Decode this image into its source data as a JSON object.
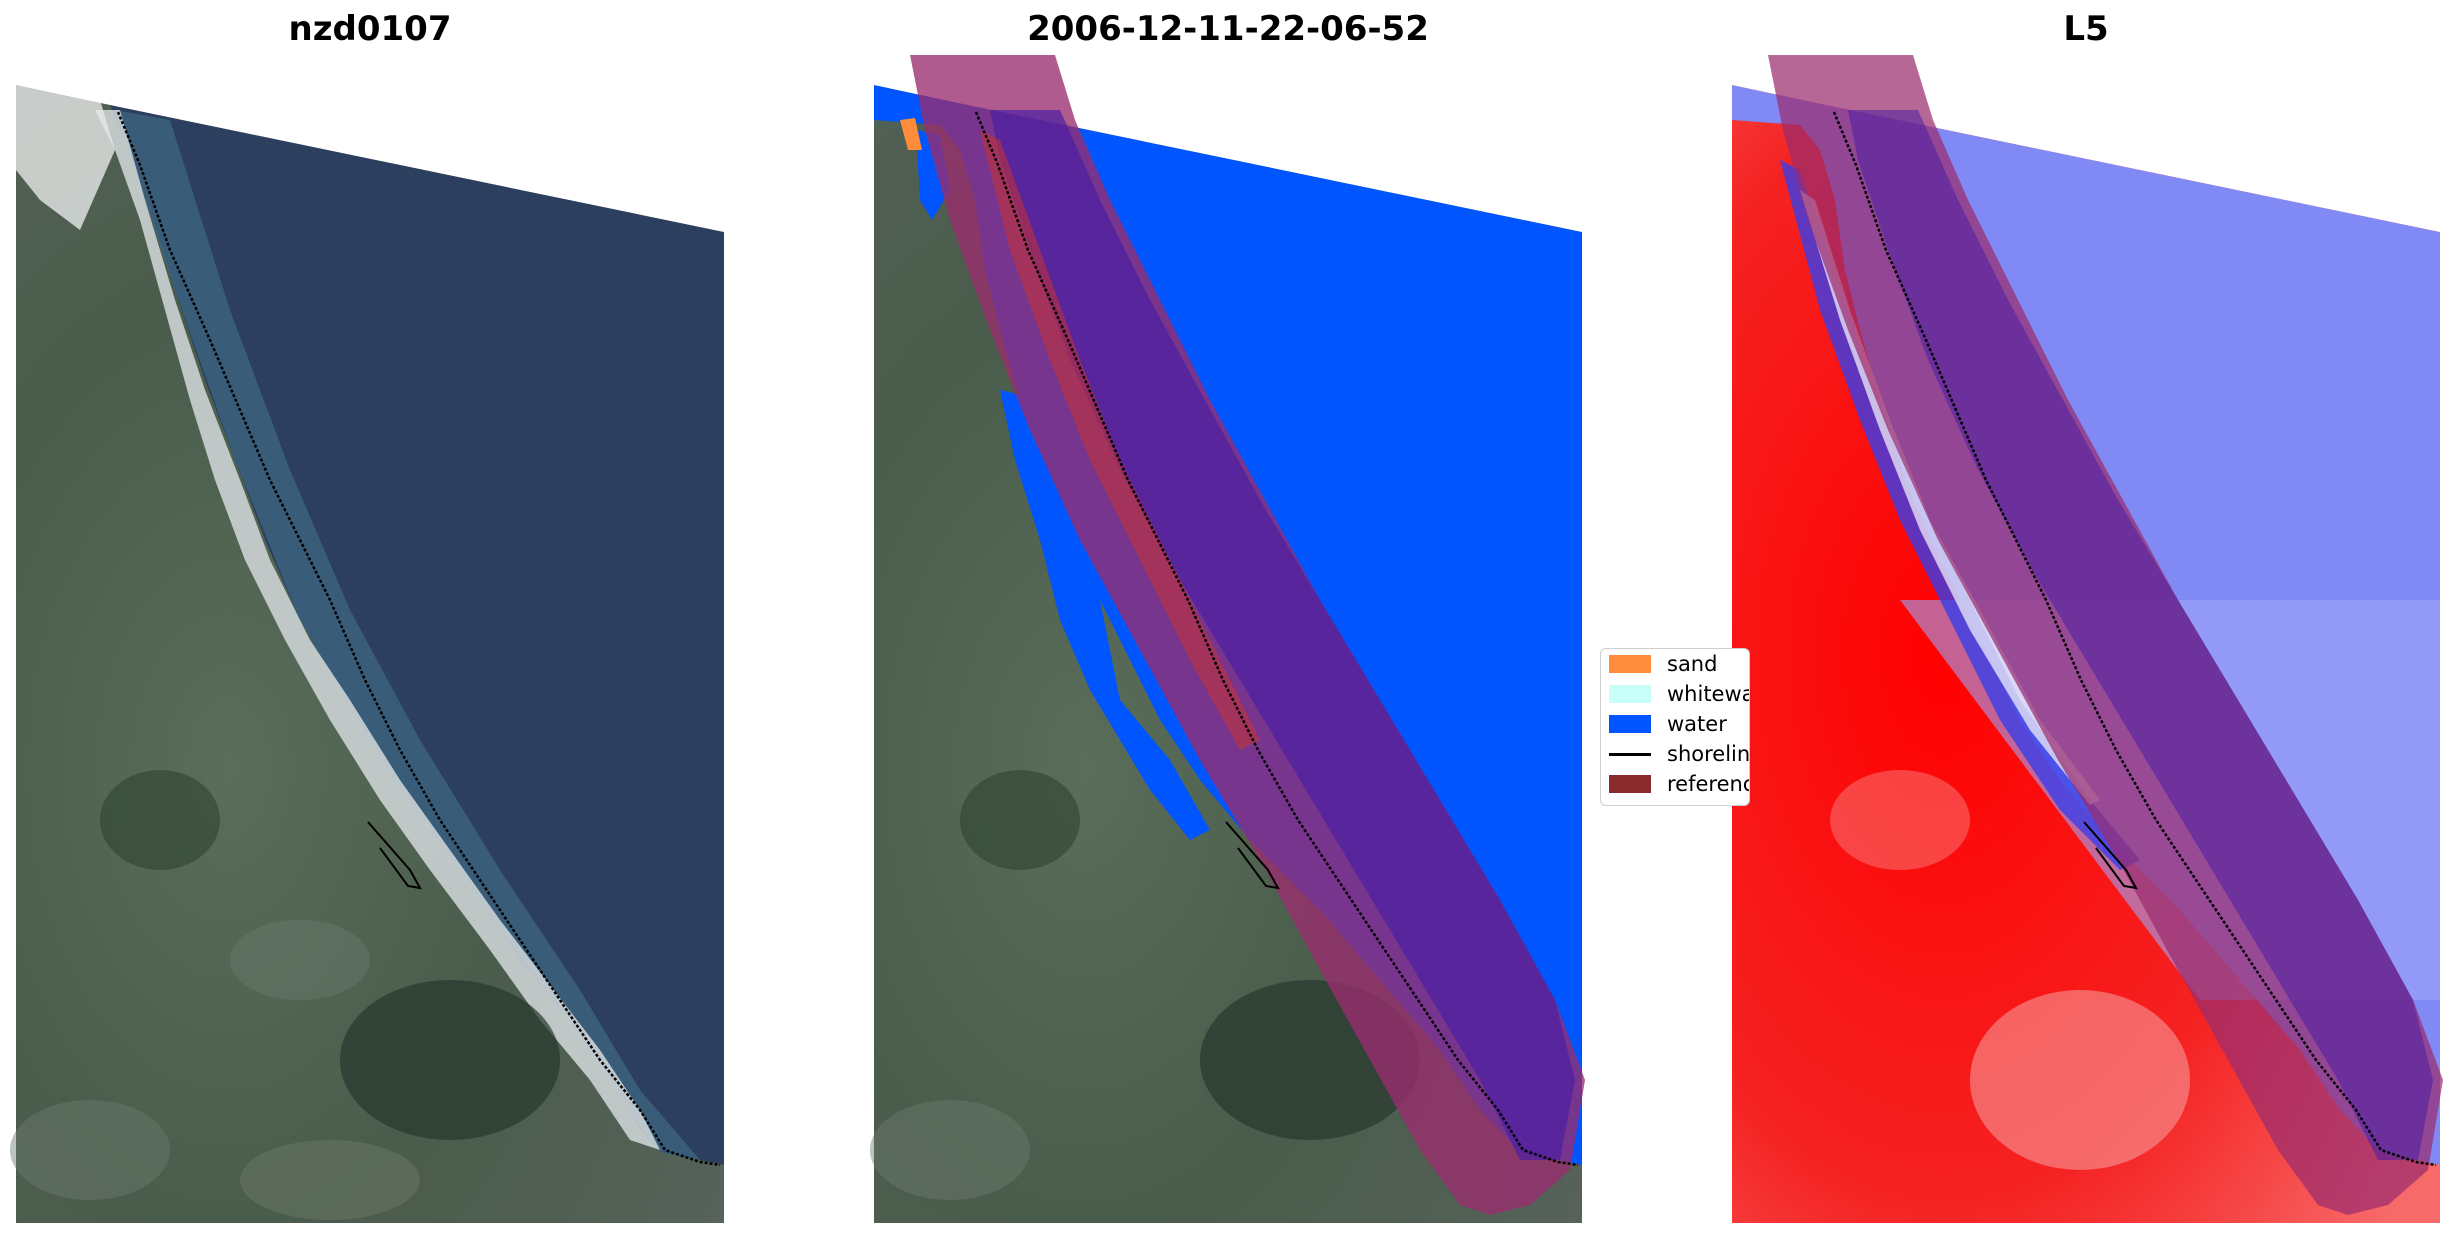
{
  "panels": [
    {
      "title": "nzd0107"
    },
    {
      "title": "2006-12-11-22-06-52"
    },
    {
      "title": "L5"
    }
  ],
  "legend": {
    "items": [
      {
        "label": "sand",
        "color": "#ff8c3a",
        "kind": "patch"
      },
      {
        "label": "whitewater",
        "color": "#c8fff8",
        "kind": "patch"
      },
      {
        "label": "water",
        "color": "#0055ff",
        "kind": "patch"
      },
      {
        "label": "shoreline",
        "color": "#000000",
        "kind": "line"
      },
      {
        "label": "reference shoreline buffer",
        "color": "#8b2a2a",
        "kind": "patch"
      }
    ]
  },
  "colors": {
    "ocean_rgb": "#2b3e5c",
    "land_rgb": "#4e6150",
    "surf": "#d9dde0",
    "water_class": "#0055ff",
    "buffer": "#9a2d6e",
    "index_water": "#7f86f5",
    "index_land": "#f21b1b"
  }
}
